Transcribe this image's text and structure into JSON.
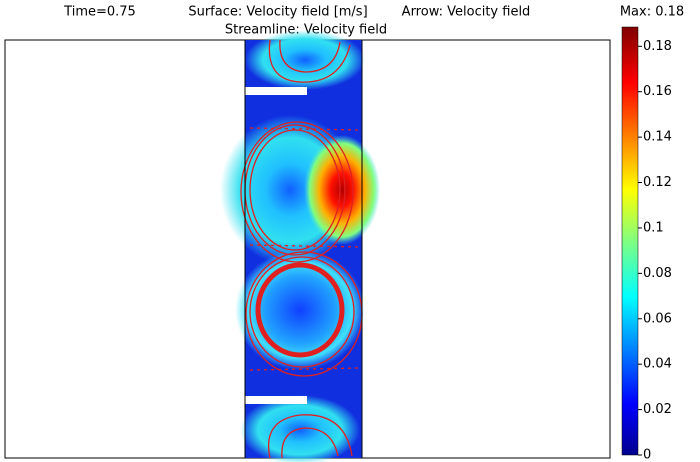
{
  "chart_data": {
    "type": "field",
    "title": [
      "Time=0.75",
      "Surface: Velocity field [m/s]",
      "Arrow: Velocity field"
    ],
    "subtitle": "Streamline: Velocity field",
    "colorbar": {
      "max_label": "Max: 0.18",
      "lim": [
        0,
        0.1885
      ],
      "ticks": [
        0,
        0.02,
        0.04,
        0.06,
        0.08,
        0.1,
        0.12,
        0.14,
        0.16,
        0.18
      ]
    }
  }
}
